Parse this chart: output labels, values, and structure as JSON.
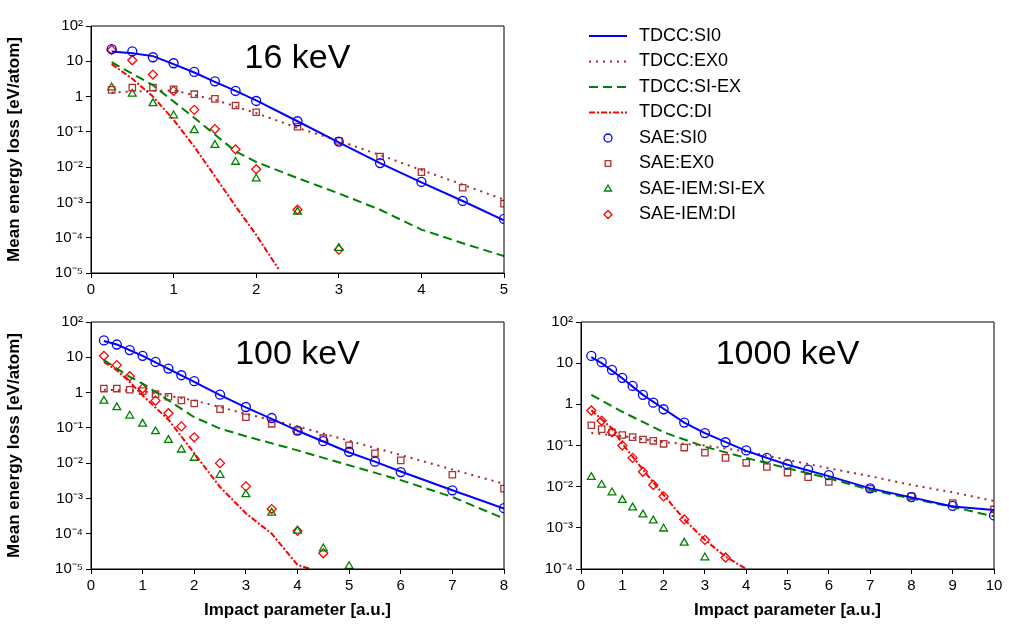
{
  "chart_data": [
    {
      "type": "line",
      "title": "16 keV",
      "ylabel": "Mean energy loss [eV/atom]",
      "xlim": [
        0,
        5
      ],
      "xticks": [
        0,
        1,
        2,
        3,
        4,
        5
      ],
      "ylim": [
        1e-05,
        100
      ],
      "yticks": [
        {
          "value": 1e-05,
          "label": "10⁻⁵"
        },
        {
          "value": 0.0001,
          "label": "10⁻⁴"
        },
        {
          "value": 0.001,
          "label": "10⁻³"
        },
        {
          "value": 0.01,
          "label": "10⁻²"
        },
        {
          "value": 0.1,
          "label": "10⁻¹"
        },
        {
          "value": 1,
          "label": "1"
        },
        {
          "value": 10,
          "label": "10"
        },
        {
          "value": 100,
          "label": "10²"
        }
      ],
      "log": "y",
      "legend": "right",
      "series": [
        {
          "name": "TDCC:SI0",
          "type": "line",
          "color": "#0000ff",
          "line_style": "solid",
          "marker": "none",
          "x": [
            0.25,
            0.5,
            0.75,
            1,
            1.25,
            1.5,
            1.75,
            2,
            2.5,
            3,
            3.5,
            4,
            4.5,
            5
          ],
          "values": [
            19,
            17,
            14,
            8.3,
            4.8,
            2.6,
            1.45,
            0.78,
            0.2,
            0.05,
            0.013,
            0.0037,
            0.0011,
            0.00031
          ]
        },
        {
          "name": "TDCC:EX0",
          "type": "line",
          "color": "#a52a2a",
          "line_style": "dotted",
          "marker": "none",
          "x": [
            0.25,
            0.5,
            1,
            1.5,
            2,
            2.5,
            3,
            3.5,
            4,
            4.5,
            5
          ],
          "values": [
            1.3,
            1.4,
            1.5,
            0.81,
            0.34,
            0.13,
            0.056,
            0.022,
            0.0083,
            0.0032,
            0.0012
          ]
        },
        {
          "name": "TDCC:SI-EX",
          "type": "line",
          "color": "#008000",
          "line_style": "dashed",
          "marker": "none",
          "x": [
            0.25,
            0.75,
            1.25,
            1.75,
            2,
            2.5,
            3,
            3.5,
            4,
            4.5,
            5
          ],
          "values": [
            9.4,
            2.1,
            0.25,
            0.028,
            0.014,
            0.0049,
            0.0018,
            0.00062,
            0.00017,
            7e-05,
            3e-05
          ]
        },
        {
          "name": "TDCC:DI",
          "type": "line",
          "color": "#ff0000",
          "line_style": "dashdot",
          "marker": "none",
          "x": [
            0.25,
            0.5,
            0.75,
            1,
            1.25,
            1.5,
            1.75,
            2,
            2.27
          ],
          "values": [
            8.3,
            3.2,
            1,
            0.22,
            0.038,
            0.0055,
            0.00078,
            0.00012,
            1.3e-05
          ]
        },
        {
          "name": "SAE:SI0",
          "type": "scatter",
          "color": "#0000ff",
          "marker": "circle",
          "x": [
            0.25,
            0.5,
            0.75,
            1,
            1.25,
            1.5,
            1.75,
            2,
            2.5,
            3,
            3.5,
            4,
            4.5,
            5
          ],
          "values": [
            22,
            19,
            13,
            8.8,
            5,
            2.7,
            1.45,
            0.75,
            0.2,
            0.053,
            0.013,
            0.0038,
            0.0011,
            0.00034
          ]
        },
        {
          "name": "SAE:EX0",
          "type": "scatter",
          "color": "#b03030",
          "marker": "square",
          "x": [
            0.25,
            0.5,
            0.75,
            1,
            1.25,
            1.5,
            1.75,
            2,
            2.5,
            3,
            3.5,
            4,
            4.5,
            5
          ],
          "values": [
            1.55,
            1.8,
            1.8,
            1.6,
            1.17,
            0.86,
            0.56,
            0.36,
            0.14,
            0.055,
            0.02,
            0.0072,
            0.0026,
            0.00092
          ]
        },
        {
          "name": "SAE-IEM:SI-EX",
          "type": "scatter",
          "color": "#008000",
          "marker": "triangle",
          "x": [
            0.25,
            0.5,
            0.75,
            1,
            1.25,
            1.5,
            1.75,
            2,
            2.5,
            3
          ],
          "values": [
            1.8,
            1.2,
            0.64,
            0.29,
            0.11,
            0.042,
            0.014,
            0.0047,
            0.00054,
            5.1e-05
          ]
        },
        {
          "name": "SAE-IEM:DI",
          "type": "scatter",
          "color": "#ff0000",
          "marker": "diamond",
          "x": [
            0.25,
            0.5,
            0.75,
            1,
            1.25,
            1.5,
            1.75,
            2,
            2.5,
            3
          ],
          "values": [
            21,
            10.7,
            4.2,
            1.45,
            0.42,
            0.12,
            0.032,
            0.0087,
            0.00062,
            4.6e-05
          ]
        }
      ]
    },
    {
      "type": "line",
      "title": "100 keV",
      "xlabel": "Impact parameter [a.u.]",
      "ylabel": "Mean energy loss [eV/atom]",
      "xlim": [
        0,
        8
      ],
      "xticks": [
        0,
        1,
        2,
        3,
        4,
        5,
        6,
        7,
        8
      ],
      "ylim": [
        1e-05,
        100
      ],
      "yticks": [
        {
          "value": 1e-05,
          "label": "10⁻⁵"
        },
        {
          "value": 0.0001,
          "label": "10⁻⁴"
        },
        {
          "value": 0.001,
          "label": "10⁻³"
        },
        {
          "value": 0.01,
          "label": "10⁻²"
        },
        {
          "value": 0.1,
          "label": "10⁻¹"
        },
        {
          "value": 1,
          "label": "1"
        },
        {
          "value": 10,
          "label": "10"
        },
        {
          "value": 100,
          "label": "10²"
        }
      ],
      "log": "y",
      "series": [
        {
          "type": "line",
          "color": "#0000ff",
          "line_style": "solid",
          "marker": "none",
          "x": [
            0.25,
            0.5,
            1,
            1.5,
            2,
            2.5,
            3,
            3.5,
            4,
            4.5,
            5,
            5.5,
            6,
            7,
            8
          ],
          "values": [
            29,
            23,
            11,
            4.7,
            2,
            0.85,
            0.38,
            0.18,
            0.083,
            0.041,
            0.02,
            0.011,
            0.0058,
            0.0017,
            0.00052
          ]
        },
        {
          "type": "line",
          "color": "#a52a2a",
          "line_style": "dotted",
          "marker": "none",
          "x": [
            0.25,
            1,
            2,
            3,
            4,
            5,
            6,
            7,
            8
          ],
          "values": [
            1.2,
            1.1,
            0.6,
            0.25,
            0.11,
            0.043,
            0.017,
            0.0066,
            0.0026
          ]
        },
        {
          "type": "line",
          "color": "#008000",
          "line_style": "dashed",
          "marker": "none",
          "x": [
            0.25,
            0.75,
            1,
            1.5,
            2,
            2.5,
            3,
            4,
            5,
            6,
            7,
            8
          ],
          "values": [
            8.3,
            2.8,
            1.8,
            0.6,
            0.2,
            0.095,
            0.058,
            0.023,
            0.0087,
            0.0033,
            0.0011,
            0.00027
          ]
        },
        {
          "type": "line",
          "color": "#ff0000",
          "line_style": "dashdot",
          "marker": "none",
          "x": [
            0.25,
            0.5,
            0.75,
            1,
            1.5,
            2,
            2.5,
            3,
            3.5,
            4,
            4.25
          ],
          "values": [
            7.4,
            4.3,
            2,
            0.83,
            0.17,
            0.019,
            0.0021,
            0.00038,
            0.0001,
            1.3e-05,
            1e-05
          ]
        },
        {
          "type": "scatter",
          "color": "#0000ff",
          "marker": "circle",
          "x": [
            0.25,
            0.5,
            0.75,
            1,
            1.25,
            1.5,
            1.75,
            2,
            2.5,
            3,
            3.5,
            4,
            4.5,
            5,
            5.5,
            6,
            7,
            8
          ],
          "values": [
            30,
            23,
            16,
            11,
            7.4,
            4.8,
            3.1,
            2.1,
            0.87,
            0.39,
            0.19,
            0.083,
            0.042,
            0.021,
            0.011,
            0.0056,
            0.0017,
            0.00053
          ]
        },
        {
          "type": "scatter",
          "color": "#b03030",
          "marker": "square",
          "x": [
            0.25,
            0.5,
            0.75,
            1,
            1.25,
            1.5,
            1.75,
            2,
            2.5,
            3,
            3.5,
            4,
            4.5,
            5,
            5.5,
            6,
            7,
            8
          ],
          "values": [
            1.3,
            1.3,
            1.2,
            1.1,
            0.9,
            0.76,
            0.6,
            0.49,
            0.34,
            0.2,
            0.13,
            0.081,
            0.051,
            0.032,
            0.019,
            0.012,
            0.0047,
            0.0019
          ]
        },
        {
          "type": "scatter",
          "color": "#008000",
          "marker": "triangle",
          "x": [
            0.25,
            0.5,
            0.75,
            1,
            1.25,
            1.5,
            1.75,
            2,
            2.5,
            3,
            3.5,
            4,
            4.5,
            5
          ],
          "values": [
            0.58,
            0.38,
            0.22,
            0.13,
            0.079,
            0.045,
            0.024,
            0.014,
            0.0046,
            0.0013,
            0.00039,
            0.00012,
            3.8e-05,
            1.2e-05
          ]
        },
        {
          "type": "scatter",
          "color": "#ff0000",
          "marker": "diamond",
          "x": [
            0.25,
            0.5,
            0.75,
            1,
            1.25,
            1.5,
            1.75,
            2,
            2.5,
            3,
            3.5,
            4,
            4.5
          ],
          "values": [
            11,
            6,
            2.9,
            1.3,
            0.59,
            0.26,
            0.11,
            0.054,
            0.01,
            0.0022,
            0.0005,
            0.00012,
            2.8e-05
          ]
        }
      ]
    },
    {
      "type": "line",
      "title": "1000 keV",
      "xlabel": "Impact parameter [a.u.]",
      "xlim": [
        0,
        10
      ],
      "xticks": [
        0,
        1,
        2,
        3,
        4,
        5,
        6,
        7,
        8,
        9,
        10
      ],
      "ylim": [
        0.0001,
        100
      ],
      "yticks": [
        {
          "value": 0.0001,
          "label": "10⁻⁴"
        },
        {
          "value": 0.001,
          "label": "10⁻³"
        },
        {
          "value": 0.01,
          "label": "10⁻²"
        },
        {
          "value": 0.1,
          "label": "10⁻¹"
        },
        {
          "value": 1,
          "label": "1"
        },
        {
          "value": 10,
          "label": "10"
        },
        {
          "value": 100,
          "label": "10²"
        }
      ],
      "log": "y",
      "series": [
        {
          "type": "line",
          "color": "#0000ff",
          "line_style": "solid",
          "marker": "none",
          "x": [
            0.25,
            0.5,
            1,
            1.5,
            2,
            2.5,
            3,
            4,
            5,
            6,
            7,
            8,
            9,
            10
          ],
          "values": [
            14,
            10,
            4.3,
            1.7,
            0.78,
            0.36,
            0.2,
            0.074,
            0.034,
            0.018,
            0.0091,
            0.0055,
            0.0033,
            0.0027
          ]
        },
        {
          "type": "line",
          "color": "#a52a2a",
          "line_style": "dotted",
          "marker": "none",
          "x": [
            0.25,
            1,
            2,
            3,
            4,
            5,
            6,
            7,
            8,
            9,
            10
          ],
          "values": [
            0.2,
            0.17,
            0.12,
            0.1,
            0.071,
            0.045,
            0.028,
            0.018,
            0.011,
            0.0073,
            0.0045
          ]
        },
        {
          "type": "line",
          "color": "#008000",
          "line_style": "dashed",
          "marker": "none",
          "x": [
            0.25,
            1,
            2,
            3,
            4,
            5,
            6,
            7,
            8,
            9,
            10
          ],
          "values": [
            1.7,
            0.66,
            0.21,
            0.093,
            0.05,
            0.028,
            0.016,
            0.0083,
            0.0052,
            0.0032,
            0.0019
          ]
        },
        {
          "type": "line",
          "color": "#ff0000",
          "line_style": "dashdot",
          "marker": "none",
          "x": [
            0.25,
            0.75,
            1,
            1.5,
            2,
            2.5,
            3,
            3.5,
            4
          ],
          "values": [
            0.72,
            0.26,
            0.11,
            0.026,
            0.0063,
            0.0016,
            0.00051,
            0.0002,
            0.0001
          ]
        },
        {
          "type": "scatter",
          "color": "#0000ff",
          "marker": "circle",
          "x": [
            0.25,
            0.5,
            0.75,
            1,
            1.25,
            1.5,
            1.75,
            2,
            2.5,
            3,
            3.5,
            4,
            4.5,
            5,
            5.5,
            6,
            7,
            8,
            9,
            10
          ],
          "values": [
            15,
            10.6,
            6.9,
            4.4,
            2.8,
            1.7,
            1.1,
            0.76,
            0.36,
            0.2,
            0.12,
            0.076,
            0.05,
            0.035,
            0.026,
            0.019,
            0.0091,
            0.0056,
            0.0034,
            0.002
          ]
        },
        {
          "type": "scatter",
          "color": "#b03030",
          "marker": "square",
          "x": [
            0.25,
            0.5,
            0.75,
            1,
            1.25,
            1.5,
            1.75,
            2,
            2.5,
            3,
            3.5,
            4,
            4.5,
            5,
            5.5,
            6,
            7,
            8,
            9,
            10
          ],
          "values": [
            0.31,
            0.25,
            0.21,
            0.18,
            0.16,
            0.14,
            0.13,
            0.11,
            0.089,
            0.067,
            0.05,
            0.038,
            0.03,
            0.022,
            0.017,
            0.013,
            0.0089,
            0.0058,
            0.004,
            0.0028
          ]
        },
        {
          "type": "scatter",
          "color": "#008000",
          "marker": "triangle",
          "x": [
            0.25,
            0.5,
            0.75,
            1,
            1.25,
            1.5,
            1.75,
            2,
            2.5,
            3
          ],
          "values": [
            0.017,
            0.011,
            0.0072,
            0.0047,
            0.0031,
            0.0021,
            0.0015,
            0.00095,
            0.00043,
            0.00019
          ]
        },
        {
          "type": "scatter",
          "color": "#ff0000",
          "marker": "diamond",
          "x": [
            0.25,
            0.5,
            0.75,
            1,
            1.25,
            1.5,
            1.75,
            2,
            2.5,
            3,
            3.5
          ],
          "values": [
            0.71,
            0.4,
            0.21,
            0.1,
            0.05,
            0.023,
            0.011,
            0.0058,
            0.0016,
            0.00051,
            0.00019
          ]
        }
      ]
    }
  ]
}
